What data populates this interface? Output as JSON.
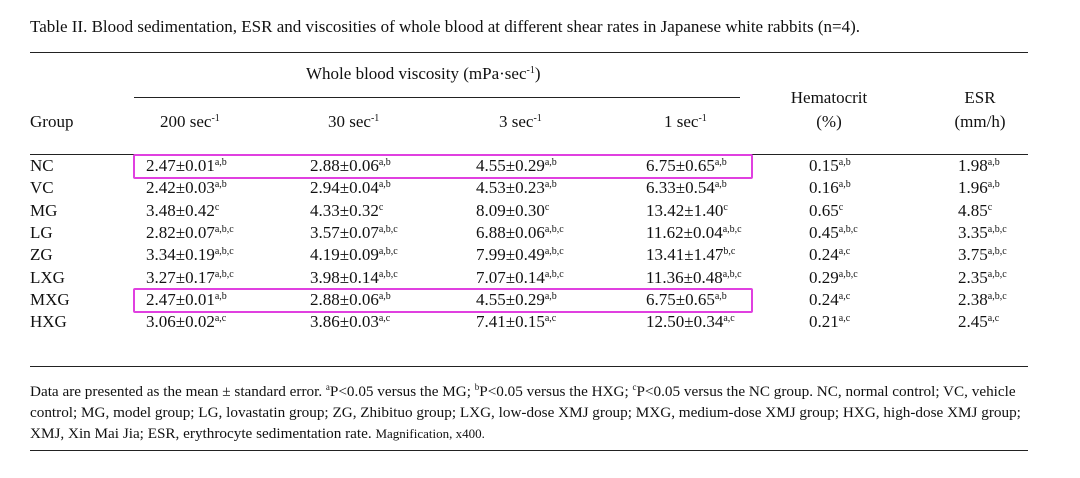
{
  "caption": "Table II. Blood sedimentation, ESR and viscosities of whole blood at different shear rates in Japanese white rabbits (n=4).",
  "header": {
    "span": "Whole blood viscosity (mPa·sec",
    "span_sup": "-1",
    "span_close": ")",
    "group": "Group",
    "hematocrit": "Hematocrit",
    "hematocrit_unit": "(%)",
    "esr": "ESR",
    "esr_unit": "(mm/h)",
    "rates": [
      {
        "val": "200 sec",
        "sup": "-1"
      },
      {
        "val": "30 sec",
        "sup": "-1"
      },
      {
        "val": "3 sec",
        "sup": "-1"
      },
      {
        "val": "1 sec",
        "sup": "-1"
      }
    ]
  },
  "rows": [
    {
      "group": "NC",
      "cells": [
        [
          "2.47±0.01",
          "a,b"
        ],
        [
          "2.88±0.06",
          "a,b"
        ],
        [
          "4.55±0.29",
          "a,b"
        ],
        [
          "6.75±0.65",
          "a,b"
        ],
        [
          "0.15",
          "a,b"
        ],
        [
          "1.98",
          "a,b"
        ]
      ]
    },
    {
      "group": "VC",
      "cells": [
        [
          "2.42±0.03",
          "a,b"
        ],
        [
          "2.94±0.04",
          "a,b"
        ],
        [
          "4.53±0.23",
          "a,b"
        ],
        [
          "6.33±0.54",
          "a,b"
        ],
        [
          "0.16",
          "a,b"
        ],
        [
          "1.96",
          "a,b"
        ]
      ]
    },
    {
      "group": "MG",
      "cells": [
        [
          "3.48±0.42",
          "c"
        ],
        [
          "4.33±0.32",
          "c"
        ],
        [
          "8.09±0.30",
          "c"
        ],
        [
          "13.42±1.40",
          "c"
        ],
        [
          "0.65",
          "c"
        ],
        [
          "4.85",
          "c"
        ]
      ]
    },
    {
      "group": "LG",
      "cells": [
        [
          "2.82±0.07",
          "a,b,c"
        ],
        [
          "3.57±0.07",
          "a,b,c"
        ],
        [
          "6.88±0.06",
          "a,b,c"
        ],
        [
          "11.62±0.04",
          "a,b,c"
        ],
        [
          "0.45",
          "a,b,c"
        ],
        [
          "3.35",
          "a,b,c"
        ]
      ]
    },
    {
      "group": "ZG",
      "cells": [
        [
          "3.34±0.19",
          "a,b,c"
        ],
        [
          "4.19±0.09",
          "a,b,c"
        ],
        [
          "7.99±0.49",
          "a,b,c"
        ],
        [
          "13.41±1.47",
          "b,c"
        ],
        [
          "0.24",
          "a,c"
        ],
        [
          "3.75",
          "a,b,c"
        ]
      ]
    },
    {
      "group": "LXG",
      "cells": [
        [
          "3.27±0.17",
          "a,b,c"
        ],
        [
          "3.98±0.14",
          "a,b,c"
        ],
        [
          "7.07±0.14",
          "a,b,c"
        ],
        [
          "11.36±0.48",
          "a,b,c"
        ],
        [
          "0.29",
          "a,b,c"
        ],
        [
          "2.35",
          "a,b,c"
        ]
      ]
    },
    {
      "group": "MXG",
      "cells": [
        [
          "2.47±0.01",
          "a,b"
        ],
        [
          "2.88±0.06",
          "a,b"
        ],
        [
          "4.55±0.29",
          "a,b"
        ],
        [
          "6.75±0.65",
          "a,b"
        ],
        [
          "0.24",
          "a,c"
        ],
        [
          "2.38",
          "a,b,c"
        ]
      ]
    },
    {
      "group": "HXG",
      "cells": [
        [
          "3.06±0.02",
          "a,c"
        ],
        [
          "3.86±0.03",
          "a,c"
        ],
        [
          "7.41±0.15",
          "a,c"
        ],
        [
          "12.50±0.34",
          "a,c"
        ],
        [
          "0.21",
          "a,c"
        ],
        [
          "2.45",
          "a,c"
        ]
      ]
    }
  ],
  "highlighted_groups": [
    "NC",
    "MXG"
  ],
  "highlight_color": "#e040e0",
  "footnote": {
    "p1": "Data are presented as the mean ± standard error. ",
    "s_a": "a",
    "p2": "P<0.05 versus the MG; ",
    "s_b": "b",
    "p3": "P<0.05 versus the HXG; ",
    "s_c": "c",
    "p4": "P<0.05 versus the NC group. NC, normal control; VC, vehicle control; MG, model group; LG, lovastatin group; ZG, Zhibituo group; LXG, low-dose XMJ group; MXG, medium-dose XMJ group; HXG, high-dose XMJ group; XMJ, Xin Mai Jia; ESR, erythrocyte sedimentation rate.",
    "small": "Magnification, x400."
  }
}
